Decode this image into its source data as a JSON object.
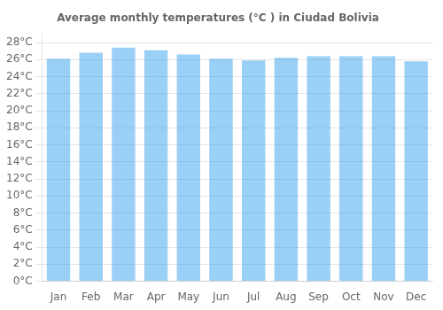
{
  "chart_data": {
    "type": "bar",
    "title": "Average monthly temperatures (°C ) in Ciudad Bolivia",
    "categories": [
      "Jan",
      "Feb",
      "Mar",
      "Apr",
      "May",
      "Jun",
      "Jul",
      "Aug",
      "Sep",
      "Oct",
      "Nov",
      "Dec"
    ],
    "values": [
      26.1,
      26.8,
      27.4,
      27.1,
      26.6,
      26.1,
      25.9,
      26.2,
      26.4,
      26.4,
      26.4,
      25.8
    ],
    "ylim": [
      0,
      29
    ],
    "yticks": [
      {
        "value": 0,
        "label": "0°C"
      },
      {
        "value": 2,
        "label": "2°C"
      },
      {
        "value": 4,
        "label": "4°C"
      },
      {
        "value": 6,
        "label": "6°C"
      },
      {
        "value": 8,
        "label": "8°C"
      },
      {
        "value": 10,
        "label": "10°C"
      },
      {
        "value": 12,
        "label": "12°C"
      },
      {
        "value": 14,
        "label": "14°C"
      },
      {
        "value": 16,
        "label": "16°C"
      },
      {
        "value": 18,
        "label": "18°C"
      },
      {
        "value": 20,
        "label": "20°C"
      },
      {
        "value": 22,
        "label": "22°C"
      },
      {
        "value": 24,
        "label": "24°C"
      },
      {
        "value": 26,
        "label": "26°C"
      },
      {
        "value": 28,
        "label": "28°C"
      }
    ],
    "grid": true
  }
}
